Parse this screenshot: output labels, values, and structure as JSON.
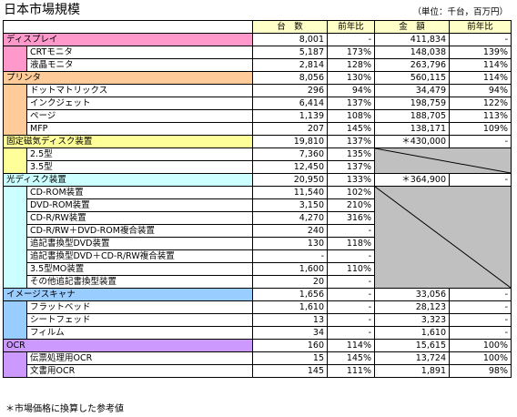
{
  "title": "日本市場規模",
  "unit": "（単位：千台，百万円）",
  "footnote": "＊市場価格に換算した参考値",
  "headers": {
    "units": "台　数",
    "units_yoy": "前年比",
    "amount": "金　額",
    "amount_yoy": "前年比"
  },
  "colors": {
    "header": "#ffffc8",
    "display": "#ff99cc",
    "printer": "#ffcc99",
    "hdd": "#ffff99",
    "optical": "#ccffff",
    "scanner": "#99ccff",
    "ocr": "#cc99ff",
    "na": "#c0c0c0"
  },
  "display": {
    "label": "ディスプレイ",
    "units": "8,001",
    "units_yoy": "-",
    "amount": "411,834",
    "amount_yoy": "-",
    "items": [
      {
        "label": "CRTモニタ",
        "units": "5,187",
        "units_yoy": "173%",
        "amount": "148,038",
        "amount_yoy": "139%"
      },
      {
        "label": "液晶モニタ",
        "units": "2,814",
        "units_yoy": "128%",
        "amount": "263,796",
        "amount_yoy": "114%"
      }
    ]
  },
  "printer": {
    "label": "プリンタ",
    "units": "8,056",
    "units_yoy": "130%",
    "amount": "560,115",
    "amount_yoy": "114%",
    "items": [
      {
        "label": "ドットマトリックス",
        "units": "296",
        "units_yoy": "94%",
        "amount": "34,479",
        "amount_yoy": "94%"
      },
      {
        "label": "インクジェット",
        "units": "6,414",
        "units_yoy": "137%",
        "amount": "198,759",
        "amount_yoy": "122%"
      },
      {
        "label": "ページ",
        "units": "1,139",
        "units_yoy": "108%",
        "amount": "188,705",
        "amount_yoy": "113%"
      },
      {
        "label": "MFP",
        "units": "207",
        "units_yoy": "145%",
        "amount": "138,171",
        "amount_yoy": "109%"
      }
    ]
  },
  "hdd": {
    "label": "固定磁気ディスク装置",
    "units": "19,810",
    "units_yoy": "137%",
    "amount": "＊430,000",
    "amount_yoy": "-",
    "items": [
      {
        "label": "2.5型",
        "units": "7,360",
        "units_yoy": "135%"
      },
      {
        "label": "3.5型",
        "units": "12,450",
        "units_yoy": "137%"
      }
    ]
  },
  "optical": {
    "label": "光ディスク装置",
    "units": "20,950",
    "units_yoy": "133%",
    "amount": "＊364,900",
    "amount_yoy": "-",
    "items": [
      {
        "label": "CD-ROM装置",
        "units": "11,540",
        "units_yoy": "102%"
      },
      {
        "label": "DVD-ROM装置",
        "units": "3,150",
        "units_yoy": "210%"
      },
      {
        "label": "CD-R/RW装置",
        "units": "4,270",
        "units_yoy": "316%"
      },
      {
        "label": "CD-R/RW＋DVD-ROM複合装置",
        "units": "240",
        "units_yoy": "-"
      },
      {
        "label": "追記書換型DVD装置",
        "units": "130",
        "units_yoy": "118%"
      },
      {
        "label": "追記書換型DVD＋CD-R/RW複合装置",
        "units": "-",
        "units_yoy": "-"
      },
      {
        "label": "3.5型MO装置",
        "units": "1,600",
        "units_yoy": "110%"
      },
      {
        "label": "その他追記書換型装置",
        "units": "20",
        "units_yoy": "-"
      }
    ]
  },
  "scanner": {
    "label": "イメージスキャナ",
    "units": "1,656",
    "units_yoy": "-",
    "amount": "33,056",
    "amount_yoy": "-",
    "items": [
      {
        "label": "フラットベッド",
        "units": "1,610",
        "units_yoy": "-",
        "amount": "28,123",
        "amount_yoy": "-"
      },
      {
        "label": "シートフェッド",
        "units": "13",
        "units_yoy": "-",
        "amount": "3,323",
        "amount_yoy": "-"
      },
      {
        "label": "フィルム",
        "units": "34",
        "units_yoy": "-",
        "amount": "1,610",
        "amount_yoy": "-"
      }
    ]
  },
  "ocr": {
    "label": "OCR",
    "units": "160",
    "units_yoy": "114%",
    "amount": "15,615",
    "amount_yoy": "100%",
    "items": [
      {
        "label": "伝票処理用OCR",
        "units": "15",
        "units_yoy": "145%",
        "amount": "13,724",
        "amount_yoy": "100%"
      },
      {
        "label": "文書用OCR",
        "units": "145",
        "units_yoy": "111%",
        "amount": "1,891",
        "amount_yoy": "98%"
      }
    ]
  }
}
